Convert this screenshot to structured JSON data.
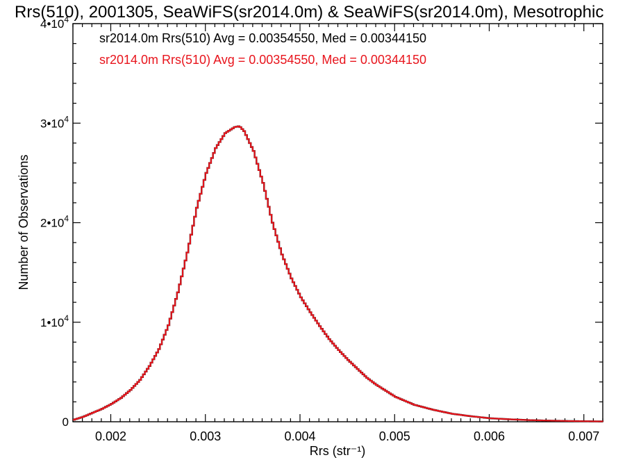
{
  "chart_data": {
    "type": "line",
    "title": "Rrs(510), 2001305, SeaWiFS(sr2014.0m) & SeaWiFS(sr2014.0m), Mesotrophic",
    "xlabel": "Rrs (str⁻¹)",
    "ylabel": "Number of Observations",
    "xlim": [
      0.0016,
      0.0072
    ],
    "ylim": [
      0,
      40000
    ],
    "x_ticks": [
      0.002,
      0.003,
      0.004,
      0.005,
      0.006,
      0.007
    ],
    "x_tick_labels": [
      "0.002",
      "0.003",
      "0.004",
      "0.005",
      "0.006",
      "0.007"
    ],
    "y_ticks": [
      0,
      10000,
      20000,
      30000,
      40000
    ],
    "y_tick_labels": [
      {
        "base": "0",
        "exp": ""
      },
      {
        "base": "1•10",
        "exp": "4"
      },
      {
        "base": "2•10",
        "exp": "4"
      },
      {
        "base": "3•10",
        "exp": "4"
      },
      {
        "base": "4•10",
        "exp": "4"
      }
    ],
    "grid": false,
    "legend": [
      {
        "text": "sr2014.0m Rrs(510) Avg = 0.00354550, Med = 0.00344150",
        "color": "#000000"
      },
      {
        "text": "sr2014.0m Rrs(510) Avg = 0.00354550, Med = 0.00344150",
        "color": "#e8141c"
      }
    ],
    "series": [
      {
        "color": "#e8141c",
        "overlay_color": "#000000",
        "x": [
          0.0016,
          0.0017,
          0.0018,
          0.0019,
          0.002,
          0.0021,
          0.0022,
          0.0023,
          0.0024,
          0.0025,
          0.0026,
          0.0027,
          0.0028,
          0.0029,
          0.003,
          0.0031,
          0.0032,
          0.0033,
          0.00335,
          0.0034,
          0.0035,
          0.0036,
          0.0037,
          0.0038,
          0.0039,
          0.004,
          0.0041,
          0.0042,
          0.0043,
          0.0044,
          0.0045,
          0.0046,
          0.0047,
          0.0048,
          0.0049,
          0.005,
          0.0052,
          0.0054,
          0.0056,
          0.0058,
          0.006,
          0.0062,
          0.0064,
          0.0066,
          0.0068,
          0.007,
          0.0072
        ],
        "y": [
          200,
          500,
          900,
          1300,
          1800,
          2400,
          3200,
          4200,
          5600,
          7300,
          9700,
          13000,
          17000,
          21500,
          25000,
          27500,
          29000,
          29600,
          29700,
          29200,
          27200,
          24000,
          20000,
          16800,
          14400,
          12500,
          11000,
          9600,
          8300,
          7200,
          6200,
          5300,
          4400,
          3700,
          3100,
          2500,
          1700,
          1200,
          800,
          550,
          350,
          250,
          170,
          120,
          80,
          50,
          30
        ]
      }
    ]
  }
}
